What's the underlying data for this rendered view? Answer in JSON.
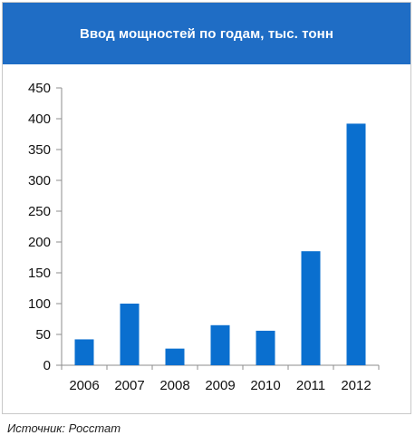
{
  "header": {
    "title": "Ввод мощностей по годам, тыс. тонн"
  },
  "footer": {
    "source": "Источник: Росстат"
  },
  "colors": {
    "header_bg": "#1f6dc5",
    "bar": "#0a6fcf",
    "grid": "#8c8c8c"
  },
  "chart_data": {
    "type": "bar",
    "title": "Ввод мощностей по годам, тыс. тонн",
    "categories": [
      "2006",
      "2007",
      "2008",
      "2009",
      "2010",
      "2011",
      "2012"
    ],
    "values": [
      42,
      100,
      27,
      65,
      56,
      185,
      392
    ],
    "ylim": [
      0,
      450
    ],
    "yticks": [
      0,
      50,
      100,
      150,
      200,
      250,
      300,
      350,
      400,
      450
    ],
    "xlabel": "",
    "ylabel": "",
    "grid": true,
    "legend": "none"
  }
}
